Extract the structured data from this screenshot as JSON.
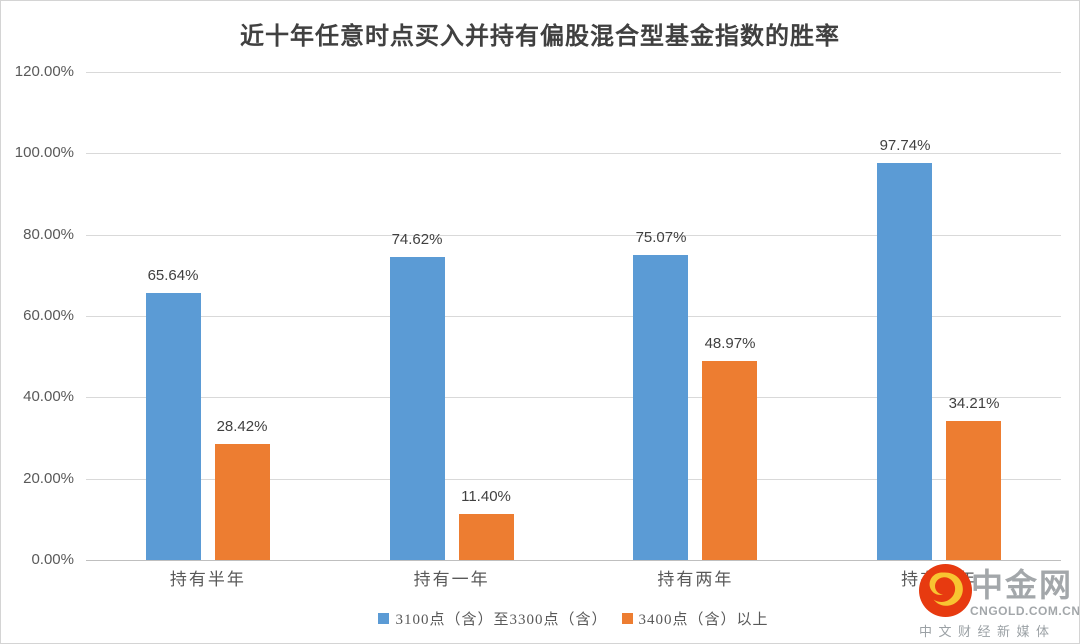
{
  "chart_data": {
    "type": "bar",
    "title": "近十年任意时点买入并持有偏股混合型基金指数的胜率",
    "categories": [
      "持有半年",
      "持有一年",
      "持有两年",
      "持有三年"
    ],
    "series": [
      {
        "name": "3100点（含）至3300点（含）",
        "color": "#5B9BD5",
        "values": [
          65.64,
          74.62,
          75.07,
          97.74
        ]
      },
      {
        "name": "3400点（含）以上",
        "color": "#ED7D31",
        "values": [
          28.42,
          11.4,
          48.97,
          34.21
        ]
      }
    ],
    "data_labels": [
      [
        "65.64%",
        "74.62%",
        "75.07%",
        "97.74%"
      ],
      [
        "28.42%",
        "11.40%",
        "48.97%",
        "34.21%"
      ]
    ],
    "ylabel": "",
    "xlabel": "",
    "ylim": [
      0,
      120
    ],
    "y_ticks": [
      "120.00%",
      "100.00%",
      "80.00%",
      "60.00%",
      "40.00%",
      "20.00%",
      "0.00%"
    ],
    "grid": true,
    "gridline_color": "#d9d9d9",
    "legend_position": "bottom"
  },
  "watermark": {
    "brand": "中金网",
    "domain": "CNGOLD.COM.CN",
    "tagline": "中文财经新媒体",
    "logo_red": "#e73a10",
    "logo_gold": "#f8c431"
  }
}
